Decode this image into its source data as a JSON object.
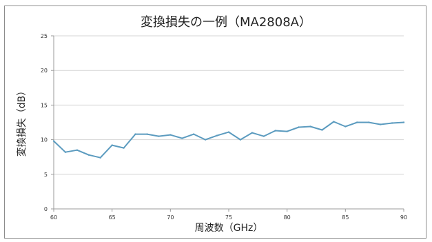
{
  "chart_data": {
    "type": "line",
    "title": "変換損失の一例（MA2808A）",
    "xlabel": "周波数（GHz）",
    "ylabel": "変換損失（dB）",
    "xlim": [
      60,
      90
    ],
    "ylim": [
      0,
      25
    ],
    "xticks": [
      60,
      65,
      70,
      75,
      80,
      85,
      90
    ],
    "yticks": [
      0,
      5,
      10,
      15,
      20,
      25
    ],
    "grid": "horizontal",
    "legend": "none",
    "line_color": "#5b9bbf",
    "series": [
      {
        "x": [
          60,
          61,
          62,
          63,
          64,
          65,
          66,
          67,
          68,
          69,
          70,
          71,
          72,
          73,
          74,
          75,
          76,
          77,
          78,
          79,
          80,
          81,
          82,
          83,
          84,
          85,
          86,
          87,
          88,
          89,
          90
        ],
        "values": [
          9.8,
          8.2,
          8.5,
          7.8,
          7.4,
          9.2,
          8.8,
          10.8,
          10.8,
          10.5,
          10.7,
          10.2,
          10.8,
          10.0,
          10.6,
          11.1,
          10.0,
          11.0,
          10.5,
          11.3,
          11.2,
          11.8,
          11.9,
          11.4,
          12.6,
          11.9,
          12.5,
          12.5,
          12.2,
          12.4,
          12.5
        ]
      }
    ]
  }
}
